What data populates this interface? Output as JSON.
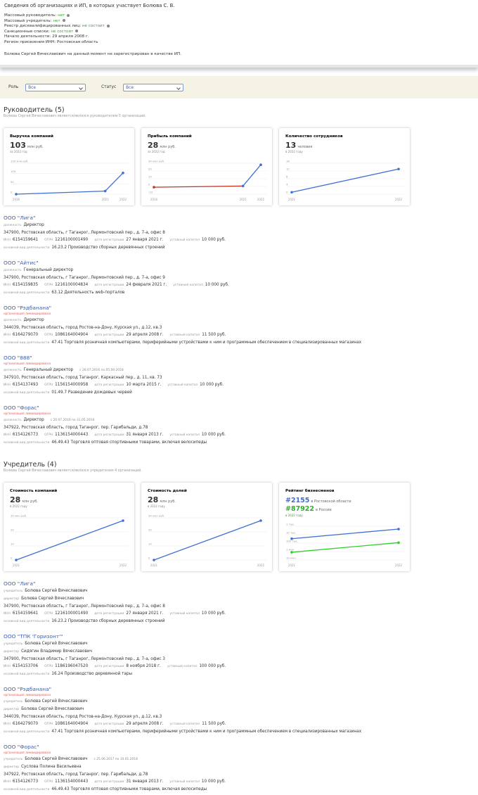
{
  "header": {
    "title": "Сведения об организациях и ИП, в которых участвует Болюва С. В.",
    "facts": [
      {
        "label": "Массовый руководитель:",
        "value": "нет",
        "color": "#3a9c3a"
      },
      {
        "label": "Массовый учредитель:",
        "value": "нет",
        "color": "#3a9c3a"
      },
      {
        "label": "Реестр дисквалифицированных лиц:",
        "value": "не состоит",
        "color": "#3a9c3a"
      },
      {
        "label": "Санкционные списки:",
        "value": "не состоит",
        "color": "#3a9c3a"
      },
      {
        "label": "Начало деятельности:",
        "value": "29 апреля 2008 г."
      },
      {
        "label": "Регион присвоения ИНН:",
        "value": "Ростовская область"
      }
    ],
    "note": "Болюва Сергей Вячеславович на данный момент не зарегистрирован в качестве ИП."
  },
  "filters": [
    {
      "label": "Роль",
      "value": "Все"
    },
    {
      "label": "Статус",
      "value": "Все"
    }
  ],
  "labels": {
    "position": "должность",
    "founder": "учредитель",
    "director": "директор",
    "inn": "ИНН",
    "ogrn": "ОГРН",
    "reg_date": "дата регистрации",
    "capital": "уставный капитал",
    "activity": "основной вид деятельности"
  },
  "sections": [
    {
      "title": "Руководитель (5)",
      "subtitle": "Болюва Сергей Вячеславович является/являлся руководителем 5 организаций.",
      "charts": [
        {
          "title": "Выручка компаний",
          "value": 103,
          "unit": "млн руб.",
          "note": "за 2022 год",
          "x": [
            2016,
            2021,
            2022
          ],
          "xlim": [
            2016,
            2022
          ],
          "ylim": [
            0,
            150
          ],
          "yticks": [
            {
              "value": 150,
              "label": "150 млн руб."
            },
            100,
            50,
            0
          ],
          "series": [
            {
              "color": "#3f6fd1",
              "values": [
                0,
                15,
                103
              ]
            }
          ]
        },
        {
          "title": "Прибыль компаний",
          "value": 28,
          "unit": "млн руб.",
          "note": "за 2022 год",
          "x": [
            2016,
            2021,
            2022
          ],
          "xlim": [
            2016,
            2022
          ],
          "ylim": [
            -10,
            30
          ],
          "yticks": [
            {
              "value": 30,
              "label": "30 млн руб."
            },
            20,
            10,
            0,
            -10
          ],
          "negative_color": "#c0392b",
          "series": [
            {
              "color": "#3f6fd1",
              "values": [
                -1,
                0.5,
                28
              ]
            }
          ]
        },
        {
          "title": "Количество сотрудников",
          "value": 13,
          "unit": "человек",
          "note": "в 2022 году",
          "x": [
            2021,
            2022
          ],
          "xlim": [
            2021,
            2022
          ],
          "ylim": [
            0,
            16
          ],
          "yticks": [
            16,
            12,
            8,
            4,
            0
          ],
          "series": [
            {
              "color": "#3f6fd1",
              "values": [
                1,
                13
              ]
            }
          ]
        }
      ],
      "orgs": [
        {
          "name": "ООО \"Лига\"",
          "position": "Директор",
          "address": "347900, Ростовская область, г Таганрог, Лермонтовский пер., д. 7-а, офис 8",
          "inn": "6154159641",
          "ogrn": "1216100001490",
          "reg_date": "27 января 2021 г.",
          "capital": "10 000 руб.",
          "activity": "16.23.2 Производство сборных деревянных строений"
        },
        {
          "name": "ООО \"Айтис\"",
          "position": "Генеральный директор",
          "address": "347900, Ростовская область, г Таганрог, Лермонтовский пер., д. 7-а, офис 9",
          "inn": "6154159835",
          "ogrn": "1216100004834",
          "reg_date": "24 февраля 2021 г.",
          "capital": "10 000 руб.",
          "activity": "63.12 Деятельность web-порталов"
        },
        {
          "name": "ООО \"Рэдбанана\"",
          "status": "организация ликвидирована",
          "position": "Директор",
          "address": "344039, Ростовская область, город Ростов-на-Дону, Курская ул., д.12, кв.3",
          "inn": "6164279070",
          "ogrn": "1086164004904",
          "reg_date": "29 апреля 2008 г.",
          "capital": "11 500 руб.",
          "activity": "47.41 Торговля розничная компьютерами, периферийными устройствами к ним и программным обеспечением в специализированных магазинах"
        },
        {
          "name": "ООО \"888\"",
          "status": "организация ликвидирована",
          "position": "Генеральный директор",
          "period": "с 26.07.2016 по 05.09.2018",
          "address": "347910, Ростовская область, город Таганрог, Каркасный пер., д. 11, кв. 73",
          "inn": "6154137493",
          "ogrn": "1156154000958",
          "reg_date": "10 марта 2015 г.",
          "capital": "10 000 руб.",
          "activity": "01.49.7 Разведение дождевых червей"
        },
        {
          "name": "ООО \"Форас\"",
          "status": "организация ликвидирована",
          "position": "Директор",
          "period": "с 20.07.2016 по 31.05.2018",
          "address": "347922, Ростовская область, город Таганрог, пер. Гарибальди, д.78",
          "inn": "6154126773",
          "ogrn": "1136154000443",
          "reg_date": "31 января 2013 г.",
          "capital": "10 000 руб.",
          "activity": "46.49.43 Торговля оптовая спортивными товарами, включая велосипеды"
        }
      ]
    },
    {
      "title": "Учредитель (4)",
      "subtitle": "Болюва Сергей Вячеславович является/являлся учредителем 4 организаций.",
      "charts": [
        {
          "title": "Стоимость компаний",
          "value": 28,
          "unit": "млн руб.",
          "note": "в 2022 году",
          "x": [
            2021,
            2022
          ],
          "xlim": [
            2021,
            2022
          ],
          "ylim": [
            0,
            30
          ],
          "yticks": [
            {
              "value": 30,
              "label": "30 млн руб."
            },
            20,
            10,
            0
          ],
          "series": [
            {
              "color": "#3f6fd1",
              "values": [
                0,
                28
              ]
            }
          ]
        },
        {
          "title": "Стоимость долей",
          "value": 28,
          "unit": "млн руб.",
          "note": "в 2022 году",
          "x": [
            2021,
            2022
          ],
          "xlim": [
            2021,
            2022
          ],
          "ylim": [
            0,
            30
          ],
          "yticks": [
            {
              "value": 30,
              "label": "30 млн руб."
            },
            20,
            10,
            0
          ],
          "series": [
            {
              "color": "#3f6fd1",
              "values": [
                0,
                28
              ]
            }
          ]
        },
        {
          "title": "Рейтинг бизнесменов",
          "headlines": [
            {
              "value": "#2155",
              "label": "в Ростовской области",
              "color": "#3f6fd1"
            },
            {
              "value": "#87922",
              "label": "в России",
              "color": "#2fae2f"
            }
          ],
          "note": "в 2022 году",
          "log": true,
          "x": [
            2021,
            2022
          ],
          "xlim": [
            2021,
            2022
          ],
          "ylim": [
            10000000,
            1000
          ],
          "yticks": [
            {
              "value": 1000,
              "label": "1 тыс."
            },
            {
              "value": 10000,
              "label": "10 тыс."
            },
            {
              "value": 100000,
              "label": "100 тыс."
            },
            {
              "value": 1000000,
              "label": "1 млн"
            },
            {
              "value": 10000000,
              "label": "10 млн"
            }
          ],
          "series": [
            {
              "color": "#3f6fd1",
              "values": [
                30000,
                2155
              ]
            },
            {
              "color": "#2fcf2f",
              "values": [
                1200000,
                87922
              ]
            }
          ]
        }
      ],
      "orgs": [
        {
          "name": "ООО \"Лига\"",
          "founder": "Болюва Сергей Вячеславович",
          "director": "Болюва Сергей Вячеславович",
          "address": "347900, Ростовская область, г Таганрог, Лермонтовский пер., д. 7-а, офис 8",
          "inn": "6154159641",
          "ogrn": "1216100001490",
          "reg_date": "27 января 2021 г.",
          "capital": "10 000 руб.",
          "activity": "16.23.2 Производство сборных деревянных строений"
        },
        {
          "name": "ООО \"ТПК 'Горизонт'\"",
          "founder": "Болюва Сергей Вячеславович",
          "director": "Сидягин Владимир Вячеславович",
          "address": "347900, Ростовская область, г Таганрог, Лермонтовский пер., д. 7-а, офис 3",
          "inn": "6154153706",
          "ogrn": "1186196047520",
          "reg_date": "8 ноября 2018 г.",
          "capital": "100 000 руб.",
          "activity": "16.24 Производство деревянной тары"
        },
        {
          "name": "ООО \"Рэдбанана\"",
          "status": "организация ликвидирована",
          "founder": "Болюва Сергей Вячеславович",
          "director": "Болюва Сергей Вячеславович",
          "address": "344039, Ростовская область, город Ростов-на-Дону, Курская ул., д.12, кв.3",
          "inn": "6164279070",
          "ogrn": "1086164004904",
          "reg_date": "29 апреля 2008 г.",
          "capital": "11 500 руб.",
          "activity": "47.41 Торговля розничная компьютерами, периферийными устройствами к ним и программным обеспечением в специализированных магазинах"
        },
        {
          "name": "ООО \"Форас\"",
          "status": "организация ликвидирована",
          "founder": "Болюва Сергей Вячеславович",
          "founder_period": "с 25.06.2017 по 10.01.2018",
          "director": "Суслова Полина Васильевна",
          "address": "347922, Ростовская область, город Таганрог, пер. Гарибальди, д.78",
          "inn": "6154126773",
          "ogrn": "1136154000443",
          "reg_date": "31 января 2013 г.",
          "capital": "10 000 руб.",
          "activity": "46.49.43 Торговля оптовая спортивными товарами, включая велосипеды"
        }
      ]
    }
  ]
}
